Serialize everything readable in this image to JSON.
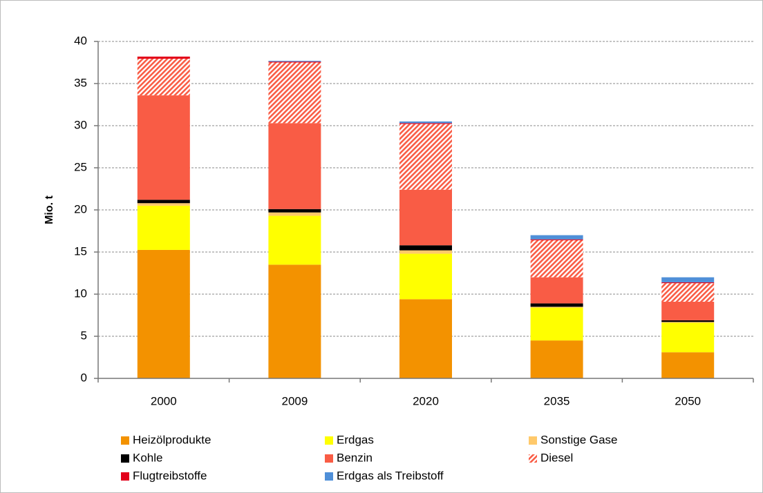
{
  "chart_data": {
    "type": "stacked-bar",
    "y_label": "Mio. t",
    "categories": [
      "2000",
      "2009",
      "2020",
      "2035",
      "2050"
    ],
    "ylim": [
      0,
      40
    ],
    "yticks": [
      0,
      5,
      10,
      15,
      20,
      25,
      30,
      35,
      40
    ],
    "grid": true,
    "series": [
      {
        "name": "Heizölprodukte",
        "color": "#f39200",
        "values": [
          15.25,
          13.5,
          9.4,
          4.5,
          3.1
        ]
      },
      {
        "name": "Erdgas",
        "color": "#ffff00",
        "values": [
          5.25,
          5.8,
          5.4,
          3.9,
          3.5
        ]
      },
      {
        "name": "Sonstige Gase",
        "color": "#ffc96b",
        "values": [
          0.3,
          0.4,
          0.4,
          0.1,
          0.1
        ]
      },
      {
        "name": "Kohle",
        "color": "#000000",
        "values": [
          0.4,
          0.4,
          0.6,
          0.4,
          0.2
        ]
      },
      {
        "name": "Benzin",
        "color": "#f95c45",
        "values": [
          12.4,
          10.2,
          6.6,
          3.1,
          2.2
        ]
      },
      {
        "name": "Diesel",
        "color": "#f95c45",
        "hatch": true,
        "values": [
          4.35,
          7.2,
          7.8,
          4.4,
          2.2
        ]
      },
      {
        "name": "Flugtreibstoffe",
        "color": "#e2001a",
        "values": [
          0.25,
          0.1,
          0.1,
          0.1,
          0.1
        ]
      },
      {
        "name": "Erdgas als Treibstoff",
        "color": "#4f8fd8",
        "values": [
          0,
          0.1,
          0.2,
          0.5,
          0.6
        ]
      }
    ]
  }
}
